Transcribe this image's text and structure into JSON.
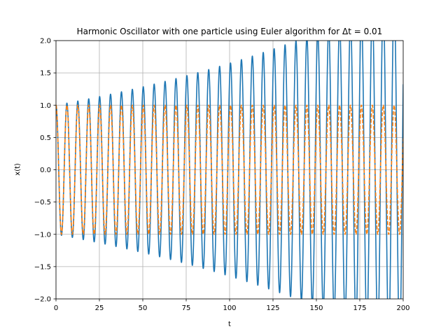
{
  "chart_data": {
    "type": "line",
    "title": "Harmonic Oscillator with one particle using Euler algorithm for Δt = 0.01",
    "xlabel": "t",
    "ylabel": "x(t)",
    "xlim": [
      0,
      200
    ],
    "ylim": [
      -2.0,
      2.0
    ],
    "grid": true,
    "xticks": [
      0,
      25,
      50,
      75,
      100,
      125,
      150,
      175,
      200
    ],
    "xtick_labels": [
      "0",
      "25",
      "50",
      "75",
      "100",
      "125",
      "150",
      "175",
      "200"
    ],
    "yticks": [
      -2.0,
      -1.5,
      -1.0,
      -0.5,
      0.0,
      0.5,
      1.0,
      1.5,
      2.0
    ],
    "ytick_labels": [
      "−2.0",
      "−1.5",
      "−1.0",
      "−0.5",
      "0.0",
      "0.5",
      "1.0",
      "1.5",
      "2.0"
    ],
    "series": [
      {
        "function": "x(t) = e^(0.005 t) · cos(t)",
        "style": "solid",
        "color": "#1f77b4",
        "t_range": [
          0,
          200
        ]
      },
      {
        "function": "x(t) = cos(t)",
        "style": "dashed",
        "color": "#ff7f0e",
        "t_range": [
          0,
          200
        ]
      }
    ]
  }
}
